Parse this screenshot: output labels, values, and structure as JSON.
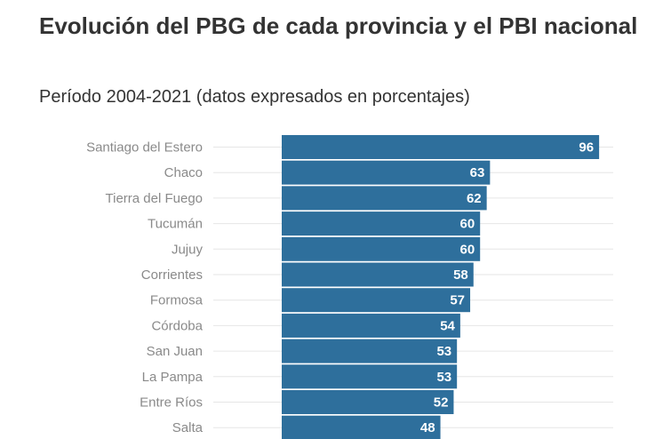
{
  "chart_data": {
    "type": "bar",
    "orientation": "horizontal",
    "title": "Evolución del PBG de cada provincia y el PBI nacional",
    "subtitle": "Período 2004-2021 (datos expresados en porcentajes)",
    "categories": [
      "Santiago del Estero",
      "Chaco",
      "Tierra del Fuego",
      "Tucumán",
      "Jujuy",
      "Corrientes",
      "Formosa",
      "Córdoba",
      "San Juan",
      "La Pampa",
      "Entre Ríos",
      "Salta"
    ],
    "values": [
      96,
      63,
      62,
      60,
      60,
      58,
      57,
      54,
      53,
      53,
      52,
      48
    ],
    "bar_color": "#2e6f9c",
    "label_color": "#ffffff",
    "grid": true,
    "xlabel": "",
    "ylabel": ""
  }
}
